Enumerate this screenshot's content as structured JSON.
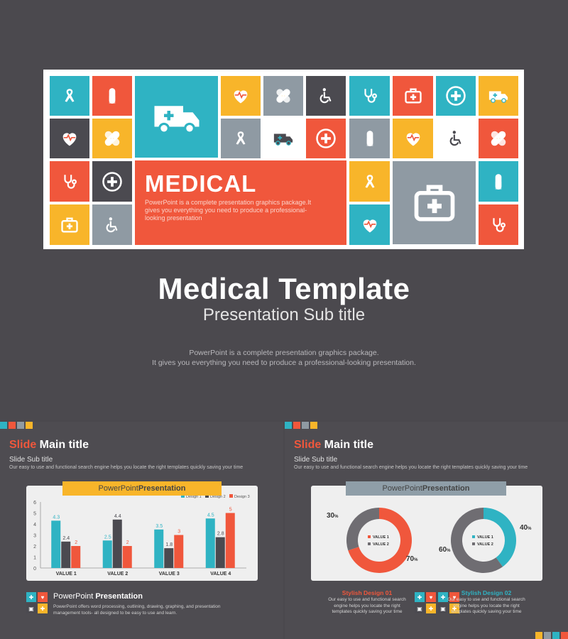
{
  "hero": {
    "banner_word": "MEDICAL",
    "banner_desc": "PowerPoint is a complete presentation graphics package.It gives you everything you need to produce a professional-looking presentation",
    "title": "Medical Template",
    "subtitle": "Presentation Sub title",
    "desc_line1": "PowerPoint is a complete presentation graphics package.",
    "desc_line2": "It gives you everything you need to produce a professional-looking presentation."
  },
  "colors": {
    "teal": "#2fb3c3",
    "orange": "#f0573c",
    "yellow": "#f8b52a",
    "dark": "#4b4a50",
    "gray": "#8f9aa3",
    "white": "#ffffff"
  },
  "tiles_icons": [
    "ribbon-icon",
    "pill-icon",
    "ambulance-icon",
    "heart-icon",
    "bandage-icon",
    "wheelchair-icon",
    "stethoscope-icon",
    "first-aid-kit-icon",
    "cross-icon"
  ],
  "slide_left": {
    "title_accent": "Slide",
    "title_rest": " Main title",
    "subtitle": "Slide Sub title",
    "desc": "Our easy to use and functional search engine helps you locate the right templates quickly saving your time",
    "ribbon_plain": "PowerPoint ",
    "ribbon_bold": "Presentation",
    "footer_plain": "PowerPoint ",
    "footer_bold": "Presentation",
    "footer_desc": "PowerPoint offers word processing, outlining, drawing, graphing, and presentation management tools- all designed to be easy to use and learn."
  },
  "slide_right": {
    "title_accent": "Slide",
    "title_rest": " Main title",
    "subtitle": "Slide Sub title",
    "desc": "Our easy to use and functional search engine helps you locate the right templates quickly saving your time",
    "ribbon_plain": "PowerPoint ",
    "ribbon_bold": "Presentation",
    "design1_title": "Stylish Design 01",
    "design1_desc": "Our easy to use and functional search engine helps you locate the right templates quickly saving your time",
    "design2_title": "Stylish Design 02",
    "design2_desc": "Our easy to use and functional search engine helps you locate the right templates quickly saving your time"
  },
  "chart_data": [
    {
      "type": "bar",
      "categories": [
        "VALUE 1",
        "VALUE 2",
        "VALUE 3",
        "VALUE 4"
      ],
      "series": [
        {
          "name": "Design 1",
          "values": [
            4.3,
            2.5,
            3.5,
            4.5
          ],
          "color": "#2fb3c3"
        },
        {
          "name": "Design 2",
          "values": [
            2.4,
            4.4,
            1.8,
            2.8
          ],
          "color": "#4b4a50"
        },
        {
          "name": "Design 3",
          "values": [
            2,
            2,
            3,
            5
          ],
          "color": "#f0573c"
        }
      ],
      "ylim": [
        0,
        6
      ],
      "yticks": [
        "0",
        "1",
        "2",
        "3",
        "4",
        "5",
        "6"
      ],
      "legend": "top-right",
      "grid": false
    },
    {
      "type": "pie",
      "variant": "donut",
      "labels": [
        "VALUE 1",
        "VALUE 2"
      ],
      "values": [
        70,
        30
      ],
      "value_labels": [
        "70",
        "30"
      ],
      "unit": "%",
      "colors": [
        "#f0573c",
        "#6f6d72"
      ]
    },
    {
      "type": "pie",
      "variant": "donut",
      "labels": [
        "VALUE 1",
        "VALUE 2"
      ],
      "values": [
        40,
        60
      ],
      "value_labels": [
        "40",
        "60"
      ],
      "unit": "%",
      "colors": [
        "#2fb3c3",
        "#6f6d72"
      ]
    }
  ]
}
